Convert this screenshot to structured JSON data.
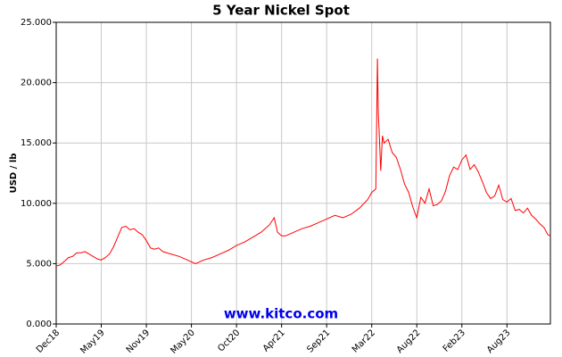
{
  "chart_data": {
    "type": "line",
    "title": "5 Year Nickel Spot",
    "y_label": "USD / lb",
    "watermark": "www.kitco.com",
    "xlim": [
      0,
      60.3
    ],
    "ylim": [
      0,
      25
    ],
    "xticks": [
      {
        "value": 0,
        "label": "Dec18"
      },
      {
        "value": 5.5,
        "label": "May19"
      },
      {
        "value": 11,
        "label": "Nov19"
      },
      {
        "value": 16.5,
        "label": "May20"
      },
      {
        "value": 22,
        "label": "Oct20"
      },
      {
        "value": 27.5,
        "label": "Apr21"
      },
      {
        "value": 33,
        "label": "Sep21"
      },
      {
        "value": 38.5,
        "label": "Mar22"
      },
      {
        "value": 44,
        "label": "Aug22"
      },
      {
        "value": 49.5,
        "label": "Feb23"
      },
      {
        "value": 55,
        "label": "Aug23"
      }
    ],
    "yticks": [
      {
        "value": 0,
        "label": "0.000"
      },
      {
        "value": 5,
        "label": "5.000"
      },
      {
        "value": 10,
        "label": "10.000"
      },
      {
        "value": 15,
        "label": "15.000"
      },
      {
        "value": 20,
        "label": "20.000"
      },
      {
        "value": 25,
        "label": "25.000"
      }
    ],
    "grid": true,
    "color": "#ff0000",
    "x": [
      0,
      0.5,
      1,
      1.5,
      2,
      2.5,
      3,
      3.5,
      4,
      4.5,
      5,
      5.5,
      6,
      6.5,
      7,
      7.5,
      8,
      8.5,
      9,
      9.5,
      10,
      10.5,
      11,
      11.5,
      12,
      12.5,
      13,
      14,
      15,
      16,
      17,
      18,
      19,
      20,
      21,
      22,
      23,
      24,
      25,
      26,
      26.6,
      27,
      27.5,
      28,
      29,
      30,
      31,
      32,
      33,
      34,
      35,
      36,
      37,
      38,
      38.5,
      39,
      39.2,
      39.3,
      39.4,
      39.6,
      39.8,
      40,
      40.5,
      41,
      41.5,
      42,
      42.5,
      43,
      43.5,
      44,
      44.5,
      45,
      45.5,
      46,
      46.5,
      47,
      47.5,
      48,
      48.5,
      49,
      49.5,
      50,
      50.5,
      51,
      51.5,
      52,
      52.5,
      53,
      53.5,
      54,
      54.5,
      55,
      55.5,
      56,
      56.5,
      57,
      57.5,
      58,
      58.5,
      59,
      59.5,
      60,
      60.3
    ],
    "values": [
      4.8,
      4.9,
      5.2,
      5.5,
      5.6,
      5.9,
      5.9,
      6.0,
      5.8,
      5.6,
      5.4,
      5.3,
      5.5,
      5.8,
      6.4,
      7.2,
      8.0,
      8.1,
      7.8,
      7.9,
      7.6,
      7.4,
      6.9,
      6.3,
      6.2,
      6.3,
      6.0,
      5.8,
      5.6,
      5.3,
      5.0,
      5.3,
      5.5,
      5.8,
      6.1,
      6.5,
      6.8,
      7.2,
      7.6,
      8.2,
      8.8,
      7.6,
      7.3,
      7.3,
      7.6,
      7.9,
      8.1,
      8.4,
      8.7,
      9.0,
      8.8,
      9.1,
      9.6,
      10.3,
      10.9,
      11.2,
      22.0,
      17.4,
      16.0,
      12.7,
      15.6,
      15.0,
      15.3,
      14.2,
      13.8,
      12.8,
      11.6,
      10.9,
      9.7,
      8.8,
      10.5,
      10.0,
      11.2,
      9.8,
      9.9,
      10.2,
      11.0,
      12.3,
      13.0,
      12.8,
      13.6,
      14.0,
      12.8,
      13.2,
      12.6,
      11.8,
      10.9,
      10.4,
      10.6,
      11.5,
      10.3,
      10.1,
      10.4,
      9.4,
      9.5,
      9.2,
      9.6,
      9.0,
      8.7,
      8.3,
      8.0,
      7.4,
      7.3
    ]
  }
}
